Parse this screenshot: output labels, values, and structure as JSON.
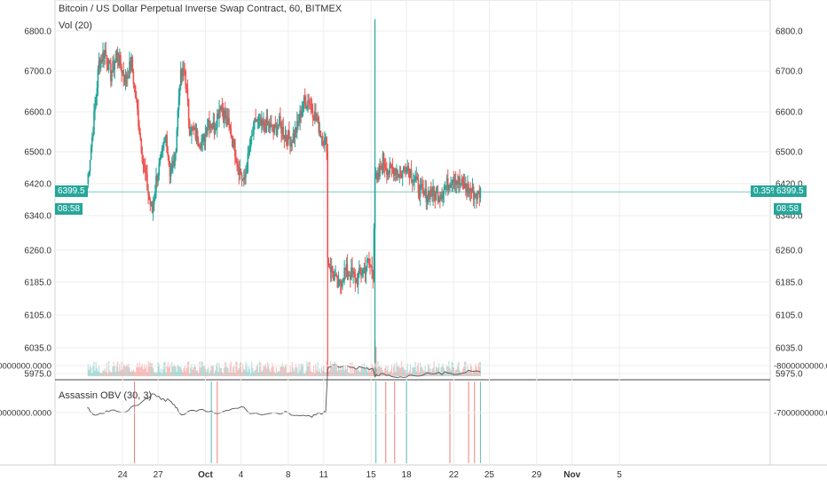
{
  "header": {
    "title": "Bitcoin / US Dollar Perpetual Inverse Swap Contract, 60, BITMEX",
    "volume_label": "Vol (20)",
    "indicator_label": "Assassin OBV (30, 3)"
  },
  "price_marker": {
    "price": "6399.5",
    "countdown": "08:58",
    "change": "0.35%"
  },
  "colors": {
    "up": "#26a69a",
    "down": "#ef5350",
    "grid": "#eeeeee",
    "axis_text": "#333333",
    "obv_line": "#555555"
  },
  "chart_data": [
    {
      "type": "candlestick",
      "price_ticks": [
        6800.0,
        6700.0,
        6600.0,
        6500.0,
        6420.0,
        6340.0,
        6260.0,
        6185.0,
        6105.0,
        6035.0,
        5975.0
      ],
      "x_ticks": [
        "24",
        "27",
        "Oct",
        "4",
        "8",
        "11",
        "15",
        "18",
        "22",
        "25",
        "29",
        "Nov",
        "5"
      ],
      "current_price": 6399.5,
      "close_path": [
        {
          "date": "2018-09-21T00:00",
          "price": 6420
        },
        {
          "date": "2018-09-21T12:00",
          "price": 6560
        },
        {
          "date": "2018-09-22T00:00",
          "price": 6720
        },
        {
          "date": "2018-09-22T12:00",
          "price": 6750
        },
        {
          "date": "2018-09-23T00:00",
          "price": 6690
        },
        {
          "date": "2018-09-23T12:00",
          "price": 6740
        },
        {
          "date": "2018-09-24T06:00",
          "price": 6680
        },
        {
          "date": "2018-09-24T18:00",
          "price": 6720
        },
        {
          "date": "2018-09-25T06:00",
          "price": 6600
        },
        {
          "date": "2018-09-25T18:00",
          "price": 6470
        },
        {
          "date": "2018-09-26T06:00",
          "price": 6380
        },
        {
          "date": "2018-09-26T12:00",
          "price": 6350
        },
        {
          "date": "2018-09-26T20:00",
          "price": 6430
        },
        {
          "date": "2018-09-27T06:00",
          "price": 6480
        },
        {
          "date": "2018-09-27T16:00",
          "price": 6540
        },
        {
          "date": "2018-09-28T00:00",
          "price": 6450
        },
        {
          "date": "2018-09-28T10:00",
          "price": 6480
        },
        {
          "date": "2018-09-28T20:00",
          "price": 6680
        },
        {
          "date": "2018-09-29T06:00",
          "price": 6700
        },
        {
          "date": "2018-09-29T16:00",
          "price": 6560
        },
        {
          "date": "2018-09-30T06:00",
          "price": 6540
        },
        {
          "date": "2018-09-30T18:00",
          "price": 6520
        },
        {
          "date": "2018-10-01T06:00",
          "price": 6580
        },
        {
          "date": "2018-10-01T18:00",
          "price": 6560
        },
        {
          "date": "2018-10-02T06:00",
          "price": 6620
        },
        {
          "date": "2018-10-02T18:00",
          "price": 6580
        },
        {
          "date": "2018-10-03T06:00",
          "price": 6540
        },
        {
          "date": "2018-10-03T18:00",
          "price": 6470
        },
        {
          "date": "2018-10-04T06:00",
          "price": 6420
        },
        {
          "date": "2018-10-04T18:00",
          "price": 6510
        },
        {
          "date": "2018-10-05T06:00",
          "price": 6580
        },
        {
          "date": "2018-10-05T18:00",
          "price": 6560
        },
        {
          "date": "2018-10-06T06:00",
          "price": 6570
        },
        {
          "date": "2018-10-06T18:00",
          "price": 6550
        },
        {
          "date": "2018-10-07T06:00",
          "price": 6570
        },
        {
          "date": "2018-10-07T18:00",
          "price": 6540
        },
        {
          "date": "2018-10-08T06:00",
          "price": 6530
        },
        {
          "date": "2018-10-08T18:00",
          "price": 6560
        },
        {
          "date": "2018-10-09T06:00",
          "price": 6620
        },
        {
          "date": "2018-10-09T18:00",
          "price": 6630
        },
        {
          "date": "2018-10-10T06:00",
          "price": 6590
        },
        {
          "date": "2018-10-10T18:00",
          "price": 6550
        },
        {
          "date": "2018-10-11T00:00",
          "price": 6530
        },
        {
          "date": "2018-10-11T06:00",
          "price": 6520
        },
        {
          "date": "2018-10-11T08:00",
          "price": 6240
        },
        {
          "date": "2018-10-11T20:00",
          "price": 6200
        },
        {
          "date": "2018-10-12T06:00",
          "price": 6170
        },
        {
          "date": "2018-10-12T18:00",
          "price": 6210
        },
        {
          "date": "2018-10-13T06:00",
          "price": 6205
        },
        {
          "date": "2018-10-13T18:00",
          "price": 6190
        },
        {
          "date": "2018-10-14T06:00",
          "price": 6210
        },
        {
          "date": "2018-10-14T18:00",
          "price": 6230
        },
        {
          "date": "2018-10-15T04:00",
          "price": 6210
        },
        {
          "date": "2018-10-15T08:00",
          "price": 6440
        },
        {
          "date": "2018-10-15T12:00",
          "price": 6420
        },
        {
          "date": "2018-10-16T00:00",
          "price": 6480
        },
        {
          "date": "2018-10-16T12:00",
          "price": 6450
        },
        {
          "date": "2018-10-17T00:00",
          "price": 6460
        },
        {
          "date": "2018-10-17T12:00",
          "price": 6440
        },
        {
          "date": "2018-10-18T00:00",
          "price": 6470
        },
        {
          "date": "2018-10-18T12:00",
          "price": 6440
        },
        {
          "date": "2018-10-19T00:00",
          "price": 6410
        },
        {
          "date": "2018-10-19T12:00",
          "price": 6390
        },
        {
          "date": "2018-10-20T00:00",
          "price": 6400
        },
        {
          "date": "2018-10-20T12:00",
          "price": 6390
        },
        {
          "date": "2018-10-21T00:00",
          "price": 6400
        },
        {
          "date": "2018-10-21T12:00",
          "price": 6420
        },
        {
          "date": "2018-10-22T00:00",
          "price": 6440
        },
        {
          "date": "2018-10-22T12:00",
          "price": 6420
        },
        {
          "date": "2018-10-23T00:00",
          "price": 6410
        },
        {
          "date": "2018-10-23T12:00",
          "price": 6400
        },
        {
          "date": "2018-10-24T00:00",
          "price": 6390
        },
        {
          "date": "2018-10-24T06:00",
          "price": 6399.5
        }
      ]
    },
    {
      "type": "line",
      "name": "Assassin OBV (30, 3)",
      "y_ticks": [
        -7000000000,
        -8000000000
      ],
      "series": [
        {
          "values": [
            {
              "date": "2018-09-21T00:00",
              "value": -7100000000
            },
            {
              "date": "2018-09-21T12:00",
              "value": -6960000000
            },
            {
              "date": "2018-09-22T06:00",
              "value": -6980000000
            },
            {
              "date": "2018-09-23T00:00",
              "value": -7050000000
            },
            {
              "date": "2018-09-24T00:00",
              "value": -7000000000
            },
            {
              "date": "2018-09-25T00:00",
              "value": -7150000000
            },
            {
              "date": "2018-09-26T00:00",
              "value": -7300000000
            },
            {
              "date": "2018-09-26T12:00",
              "value": -7400000000
            },
            {
              "date": "2018-09-27T06:00",
              "value": -7280000000
            },
            {
              "date": "2018-09-28T00:00",
              "value": -7250000000
            },
            {
              "date": "2018-09-28T12:00",
              "value": -7100000000
            },
            {
              "date": "2018-09-29T00:00",
              "value": -6950000000
            },
            {
              "date": "2018-09-30T00:00",
              "value": -7050000000
            },
            {
              "date": "2018-10-01T00:00",
              "value": -7030000000
            },
            {
              "date": "2018-10-02T00:00",
              "value": -6980000000
            },
            {
              "date": "2018-10-03T00:00",
              "value": -7050000000
            },
            {
              "date": "2018-10-04T00:00",
              "value": -7120000000
            },
            {
              "date": "2018-10-05T00:00",
              "value": -6980000000
            },
            {
              "date": "2018-10-06T00:00",
              "value": -6960000000
            },
            {
              "date": "2018-10-07T00:00",
              "value": -6990000000
            },
            {
              "date": "2018-10-08T00:00",
              "value": -7000000000
            },
            {
              "date": "2018-10-09T00:00",
              "value": -6930000000
            },
            {
              "date": "2018-10-10T00:00",
              "value": -6900000000
            },
            {
              "date": "2018-10-10T16:00",
              "value": -6990000000
            },
            {
              "date": "2018-10-11T04:00",
              "value": -7000000000
            },
            {
              "date": "2018-10-11T08:00",
              "value": -7900000000
            },
            {
              "date": "2018-10-11T16:00",
              "value": -8000000000
            },
            {
              "date": "2018-10-12T12:00",
              "value": -7970000000
            },
            {
              "date": "2018-10-13T12:00",
              "value": -7960000000
            },
            {
              "date": "2018-10-14T12:00",
              "value": -7940000000
            },
            {
              "date": "2018-10-15T04:00",
              "value": -7930000000
            },
            {
              "date": "2018-10-15T08:00",
              "value": -7760000000
            },
            {
              "date": "2018-10-15T20:00",
              "value": -7830000000
            },
            {
              "date": "2018-10-16T12:00",
              "value": -7800000000
            },
            {
              "date": "2018-10-17T12:00",
              "value": -7760000000
            },
            {
              "date": "2018-10-18T12:00",
              "value": -7790000000
            },
            {
              "date": "2018-10-19T12:00",
              "value": -7810000000
            },
            {
              "date": "2018-10-20T12:00",
              "value": -7830000000
            },
            {
              "date": "2018-10-21T12:00",
              "value": -7840000000
            },
            {
              "date": "2018-10-22T12:00",
              "value": -7820000000
            },
            {
              "date": "2018-10-23T12:00",
              "value": -7880000000
            },
            {
              "date": "2018-10-24T06:00",
              "value": -7860000000
            }
          ]
        }
      ],
      "signal_markers": [
        {
          "date": "2018-09-25T00:00",
          "color": "down"
        },
        {
          "date": "2018-10-01T12:00",
          "color": "up"
        },
        {
          "date": "2018-10-02T00:00",
          "color": "down"
        },
        {
          "date": "2018-10-15T10:00",
          "color": "up"
        },
        {
          "date": "2018-10-16T06:00",
          "color": "down"
        },
        {
          "date": "2018-10-17T00:00",
          "color": "down"
        },
        {
          "date": "2018-10-18T00:00",
          "color": "up"
        },
        {
          "date": "2018-10-21T16:00",
          "color": "down"
        },
        {
          "date": "2018-10-23T06:00",
          "color": "down"
        },
        {
          "date": "2018-10-23T18:00",
          "color": "down"
        },
        {
          "date": "2018-10-24T06:00",
          "color": "up"
        }
      ]
    }
  ]
}
